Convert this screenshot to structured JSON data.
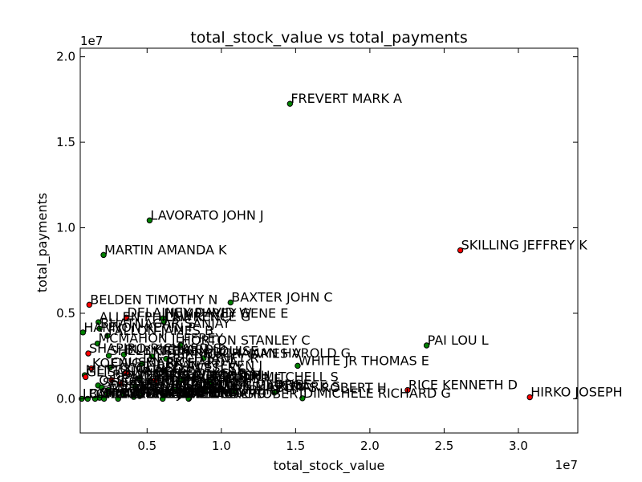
{
  "chart_data": {
    "type": "scatter",
    "title": "total_stock_value vs total_payments",
    "xlabel": "total_stock_value",
    "ylabel": "total_payments",
    "x_offset_label": "1e7",
    "y_offset_label": "1e7",
    "xlim": [
      500000,
      34000000
    ],
    "ylim": [
      -2000000,
      20500000
    ],
    "xticks": [
      5000000,
      10000000,
      15000000,
      20000000,
      25000000,
      30000000
    ],
    "xtick_labels": [
      "0.5",
      "1.0",
      "1.5",
      "2.0",
      "2.5",
      "3.0"
    ],
    "yticks": [
      0,
      5000000,
      10000000,
      15000000,
      20000000
    ],
    "ytick_labels": [
      "0.0",
      "0.5",
      "1.0",
      "1.5",
      "2.0"
    ],
    "grid": false,
    "legend": "none",
    "colors": {
      "poi": "#ff0000",
      "non_poi": "#008000",
      "marker_edge": "#000000"
    },
    "points": [
      {
        "label": "FREVERT MARK A",
        "x": 14620000,
        "y": 17250000,
        "poi": false
      },
      {
        "label": "LAVORATO JOHN J",
        "x": 5170000,
        "y": 10430000,
        "poi": false
      },
      {
        "label": "MARTIN AMANDA K",
        "x": 2070000,
        "y": 8410000,
        "poi": false
      },
      {
        "label": "SKILLING JEFFREY K",
        "x": 26090000,
        "y": 8680000,
        "poi": true
      },
      {
        "label": "BELDEN TIMOTHY N",
        "x": 1110000,
        "y": 5500000,
        "poi": true
      },
      {
        "label": "BAXTER JOHN C",
        "x": 10620000,
        "y": 5630000,
        "poi": false
      },
      {
        "label": "DELAINEY DAVID W",
        "x": 3610000,
        "y": 4750000,
        "poi": true
      },
      {
        "label": "HUMPHREY GENE E",
        "x": 6080000,
        "y": 4700000,
        "poi": false
      },
      {
        "label": "LAWRENCE G",
        "x": 6130000,
        "y": 4500000,
        "poi": false
      },
      {
        "label": "ALLEN PHILLIP K",
        "x": 1730000,
        "y": 4480000,
        "poi": false
      },
      {
        "label": "BHATNAGAR SANJAY",
        "x": 1800000,
        "y": 4100000,
        "poi": false
      },
      {
        "label": "HANNON KEVIN P",
        "x": 680000,
        "y": 3880000,
        "poi": false
      },
      {
        "label": "FALLON JAMES B",
        "x": 2330000,
        "y": 3680000,
        "poi": false
      },
      {
        "label": "MCMAHON JEFFREY",
        "x": 1660000,
        "y": 3230000,
        "poi": false
      },
      {
        "label": "HORTON STANLEY C",
        "x": 7250000,
        "y": 3130000,
        "poi": false
      },
      {
        "label": "PAI LOU L",
        "x": 23820000,
        "y": 3120000,
        "poi": false
      },
      {
        "label": "SHAPIRO RICHARD S",
        "x": 1040000,
        "y": 2650000,
        "poi": true
      },
      {
        "label": "BUY RICHARD B",
        "x": 3440000,
        "y": 2590000,
        "poi": false
      },
      {
        "label": "SHELBY REX",
        "x": 2420000,
        "y": 2520000,
        "poi": false
      },
      {
        "label": "KITCHEN LOUISE",
        "x": 5320000,
        "y": 2480000,
        "poi": false
      },
      {
        "label": "DERRICK JR. JAMES V",
        "x": 6280000,
        "y": 2340000,
        "poi": false
      },
      {
        "label": "BUCHANAN HAROLD G",
        "x": 8810000,
        "y": 2370000,
        "poi": false
      },
      {
        "label": "DIETRICH JANET R",
        "x": 4660000,
        "y": 2060000,
        "poi": false
      },
      {
        "label": "WHITE JR THOMAS E",
        "x": 15140000,
        "y": 1930000,
        "poi": false
      },
      {
        "label": "CAUSEY RICHARD A",
        "x": 2510000,
        "y": 1830000,
        "poi": false
      },
      {
        "label": "KOENIG MARK E",
        "x": 1250000,
        "y": 1780000,
        "poi": true
      },
      {
        "label": "KEAN STEVEN J",
        "x": 6150000,
        "y": 1650000,
        "poi": false
      },
      {
        "label": "COLWELL WESLEY",
        "x": 3600000,
        "y": 1490000,
        "poi": true
      },
      {
        "label": "METTS MARK",
        "x": 800000,
        "y": 1380000,
        "poi": false
      },
      {
        "label": "GLISAN JR BEN F",
        "x": 860000,
        "y": 1270000,
        "poi": true
      },
      {
        "label": "HICKERSON GARY J",
        "x": 4460000,
        "y": 1200000,
        "poi": false
      },
      {
        "label": "BOWEN JR RAYMOND M",
        "x": 2610000,
        "y": 1100000,
        "poi": true
      },
      {
        "label": "RIEKER PAULA H",
        "x": 5540000,
        "y": 1080000,
        "poi": true
      },
      {
        "label": "GOLD JOSEPH",
        "x": 7260000,
        "y": 1050000,
        "poi": false
      },
      {
        "label": "TAYLOR MITCHELL S",
        "x": 9250000,
        "y": 990000,
        "poi": false
      },
      {
        "label": "CALGER CHRISTOPHER F",
        "x": 3230000,
        "y": 870000,
        "poi": true
      },
      {
        "label": "OLSON CINDY K",
        "x": 1700000,
        "y": 780000,
        "poi": false
      },
      {
        "label": "SHERRIFF JOHN R",
        "x": 4170000,
        "y": 720000,
        "poi": false
      },
      {
        "label": "SHERRICK JEFFREY B",
        "x": 1950000,
        "y": 660000,
        "poi": false
      },
      {
        "label": "BECK SALLY W",
        "x": 4750000,
        "y": 590000,
        "poi": false
      },
      {
        "label": "MCCLELLAN GEORGE",
        "x": 6800000,
        "y": 540000,
        "poi": false
      },
      {
        "label": "DURAN WILLIAM D",
        "x": 2390000,
        "y": 510000,
        "poi": false
      },
      {
        "label": "RICE KENNETH D",
        "x": 22540000,
        "y": 510000,
        "poi": true
      },
      {
        "label": "SUNDE MARTIN",
        "x": 8910000,
        "y": 460000,
        "poi": false
      },
      {
        "label": "MULLER MARK S",
        "x": 10850000,
        "y": 410000,
        "poi": false
      },
      {
        "label": "BUTTS ROBERT H",
        "x": 13570000,
        "y": 360000,
        "poi": false
      },
      {
        "label": "WASAFF GEORGE",
        "x": 2330000,
        "y": 310000,
        "poi": false
      },
      {
        "label": "PIPER GREGORY F",
        "x": 3400000,
        "y": 270000,
        "poi": false
      },
      {
        "label": "WALLS JR ROBERT H",
        "x": 6200000,
        "y": 210000,
        "poi": false
      },
      {
        "label": "YEAP SOON",
        "x": 4500000,
        "y": 160000,
        "poi": false
      },
      {
        "label": "LAY KENNETH L",
        "x": 4100000,
        "y": 110000,
        "poi": false
      },
      {
        "label": "HIRKO JOSEPH",
        "x": 30770000,
        "y": 90000,
        "poi": true
      },
      {
        "label": "SHANKMAN JEFFREY A",
        "x": 1800000,
        "y": 60000,
        "poi": false
      },
      {
        "label": "DIMICHELE RICHARD G",
        "x": 15460000,
        "y": 30000,
        "poi": false
      },
      {
        "label": "LOWRY CHARLES P",
        "x": 600000,
        "y": 0,
        "poi": false
      },
      {
        "label": "BANNANTINE JAMES M",
        "x": 1000000,
        "y": 0,
        "poi": false
      },
      {
        "label": "CHAN RONNIE",
        "x": 1500000,
        "y": 0,
        "poi": false
      },
      {
        "label": "FASTOW ANDREW S",
        "x": 2100000,
        "y": 0,
        "poi": false
      },
      {
        "label": "LEWIS RICHARD",
        "x": 6050000,
        "y": 0,
        "poi": false
      },
      {
        "label": "JAEDICKE ROBERT",
        "x": 7800000,
        "y": 0,
        "poi": false
      },
      {
        "label": "MEYER ROCKFORD G",
        "x": 3050000,
        "y": 0,
        "poi": false
      }
    ]
  }
}
